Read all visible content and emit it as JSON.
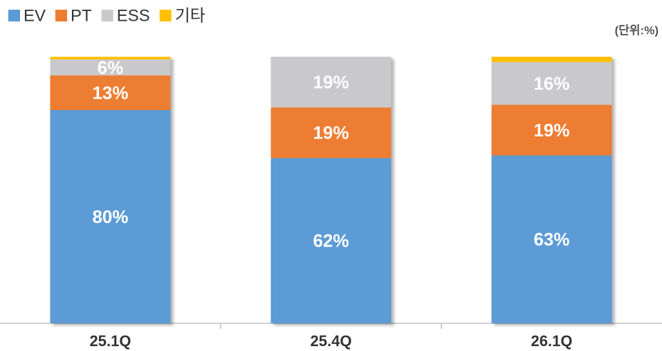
{
  "chart_data": {
    "type": "stacked-bar",
    "unit_label": "(단위:%)",
    "categories": [
      "25.1Q",
      "25.4Q",
      "26.1Q"
    ],
    "series": [
      {
        "name": "EV",
        "color": "#5b9bd5",
        "values": [
          80,
          62,
          63
        ],
        "value_labels": [
          "80%",
          "62%",
          "63%"
        ]
      },
      {
        "name": "PT",
        "color": "#ed7d31",
        "values": [
          13,
          19,
          19
        ],
        "value_labels": [
          "13%",
          "19%",
          "19%"
        ]
      },
      {
        "name": "ESS",
        "color": "#c9c9cc",
        "values": [
          6,
          19,
          16
        ],
        "value_labels": [
          "6%",
          "19%",
          "16%"
        ]
      },
      {
        "name": "기타",
        "color": "#ffc000",
        "values": [
          1,
          0,
          2
        ],
        "value_labels": [
          null,
          null,
          null
        ]
      }
    ]
  }
}
